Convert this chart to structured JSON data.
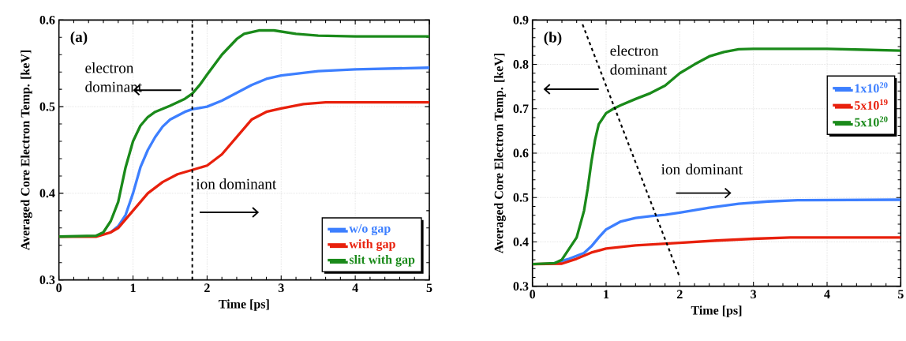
{
  "chart_data": [
    {
      "type": "line",
      "xlabel": "Time [ps]",
      "ylabel": "Averaged Core Electron Temp. [keV]",
      "xlim": [
        0,
        5
      ],
      "ylim": [
        0.3,
        0.6
      ],
      "xticks": [
        0,
        1,
        2,
        3,
        4,
        5
      ],
      "yticks": [
        0.3,
        0.4,
        0.5,
        0.6
      ],
      "grid": true,
      "legend": "bottom right",
      "marker": "none",
      "line_style": "solid",
      "annotations": [
        "(a)",
        "electron dominant",
        "ion dominant"
      ],
      "ref_lines": [
        {
          "axis": "x",
          "value": 1.8,
          "color": "#000000",
          "line_style": "dashed"
        }
      ],
      "series": [
        {
          "name": "w/o gap",
          "color": "#3d7fff",
          "x": [
            0.7,
            0.8,
            0.9,
            1.0,
            1.1,
            1.2,
            1.3,
            1.4,
            1.5,
            1.7,
            1.8,
            2.0,
            2.2,
            2.4,
            2.6,
            2.8,
            3.0,
            3.5,
            4.0,
            5.0
          ],
          "values": [
            0.355,
            0.362,
            0.375,
            0.4,
            0.43,
            0.45,
            0.465,
            0.477,
            0.485,
            0.494,
            0.497,
            0.5,
            0.507,
            0.516,
            0.525,
            0.532,
            0.536,
            0.541,
            0.543,
            0.545
          ]
        },
        {
          "name": "with gap",
          "color": "#e8200c",
          "x": [
            0,
            0.5,
            0.7,
            0.8,
            0.9,
            1.0,
            1.1,
            1.2,
            1.4,
            1.6,
            1.8,
            2.0,
            2.2,
            2.4,
            2.6,
            2.8,
            3.0,
            3.3,
            3.6,
            5.0
          ],
          "values": [
            0.35,
            0.35,
            0.355,
            0.36,
            0.37,
            0.38,
            0.39,
            0.4,
            0.413,
            0.422,
            0.427,
            0.432,
            0.445,
            0.465,
            0.485,
            0.494,
            0.498,
            0.503,
            0.505,
            0.505
          ]
        },
        {
          "name": "slit with gap",
          "color": "#1a8a1a",
          "x": [
            0,
            0.5,
            0.6,
            0.7,
            0.8,
            0.9,
            1.0,
            1.1,
            1.2,
            1.3,
            1.5,
            1.7,
            1.8,
            1.9,
            2.0,
            2.2,
            2.4,
            2.5,
            2.7,
            2.9,
            3.2,
            3.5,
            4.0,
            5.0
          ],
          "values": [
            0.35,
            0.351,
            0.355,
            0.368,
            0.39,
            0.43,
            0.46,
            0.478,
            0.488,
            0.494,
            0.501,
            0.509,
            0.515,
            0.525,
            0.537,
            0.56,
            0.578,
            0.584,
            0.588,
            0.588,
            0.584,
            0.582,
            0.581,
            0.581
          ]
        }
      ]
    },
    {
      "type": "line",
      "xlabel": "Time [ps]",
      "ylabel": "Averaged Core Electron Temp. [keV]",
      "xlim": [
        0,
        5
      ],
      "ylim": [
        0.3,
        0.9
      ],
      "xticks": [
        0,
        1,
        2,
        3,
        4,
        5
      ],
      "yticks": [
        0.3,
        0.4,
        0.5,
        0.6,
        0.7,
        0.8,
        0.9
      ],
      "grid": true,
      "legend": "right",
      "marker": "none",
      "line_style": "solid",
      "annotations": [
        "(b)",
        "electron dominant",
        "ion dominant"
      ],
      "series": [
        {
          "name": "1x10$^{20}$",
          "color": "#3d7fff",
          "x": [
            0.3,
            0.5,
            0.7,
            0.8,
            0.9,
            1.0,
            1.2,
            1.4,
            1.6,
            1.8,
            2.0,
            2.4,
            2.8,
            3.2,
            3.6,
            5.0
          ],
          "values": [
            0.352,
            0.362,
            0.375,
            0.39,
            0.41,
            0.428,
            0.446,
            0.454,
            0.458,
            0.461,
            0.466,
            0.477,
            0.486,
            0.491,
            0.494,
            0.495
          ]
        },
        {
          "name": "5x10$^{19}$",
          "color": "#e8200c",
          "x": [
            0,
            0.4,
            0.6,
            0.8,
            1.0,
            1.4,
            2.0,
            2.5,
            3.0,
            3.5,
            5.0
          ],
          "values": [
            0.35,
            0.351,
            0.362,
            0.376,
            0.385,
            0.392,
            0.398,
            0.403,
            0.407,
            0.41,
            0.41
          ]
        },
        {
          "name": "5x10$^{20}$",
          "color": "#1a8a1a",
          "x": [
            0,
            0.3,
            0.4,
            0.5,
            0.6,
            0.7,
            0.75,
            0.8,
            0.85,
            0.9,
            1.0,
            1.1,
            1.2,
            1.4,
            1.6,
            1.8,
            2.0,
            2.2,
            2.4,
            2.6,
            2.8,
            3.0,
            4.0,
            4.5,
            5.0
          ],
          "values": [
            0.35,
            0.352,
            0.36,
            0.385,
            0.41,
            0.47,
            0.52,
            0.58,
            0.63,
            0.665,
            0.69,
            0.7,
            0.708,
            0.722,
            0.735,
            0.752,
            0.78,
            0.8,
            0.818,
            0.828,
            0.834,
            0.835,
            0.835,
            0.833,
            0.831
          ]
        },
        {
          "color": "#000000",
          "line_style": "dashed",
          "x": [
            0.68,
            2.0
          ],
          "values": [
            0.89,
            0.32
          ]
        }
      ]
    }
  ]
}
